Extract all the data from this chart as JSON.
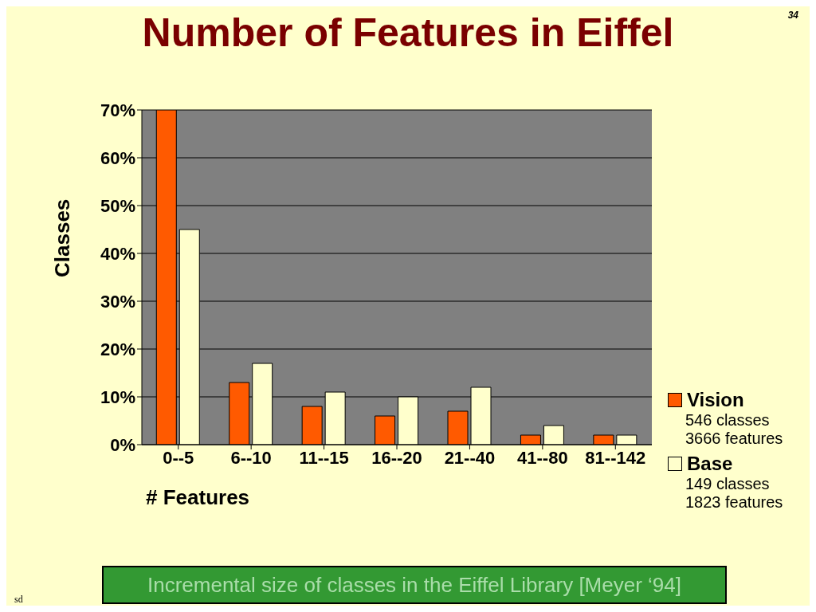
{
  "chart_data": {
    "type": "bar",
    "title": "Number of Features in Eiffel",
    "xlabel": "# Features",
    "ylabel": "Classes",
    "categories": [
      "0--5",
      "6--10",
      "11--15",
      "16--20",
      "21--40",
      "41--80",
      "81--142"
    ],
    "series": [
      {
        "name": "Vision",
        "color": "#ff5a00",
        "values": [
          70,
          13,
          8,
          6,
          7,
          2,
          2
        ]
      },
      {
        "name": "Base",
        "color": "#ffffcc",
        "values": [
          45,
          17,
          11,
          10,
          12,
          4,
          2
        ]
      }
    ],
    "ylim": [
      0,
      70
    ],
    "yticks": [
      {
        "value": 0,
        "label": "0%"
      },
      {
        "value": 10,
        "label": "10%"
      },
      {
        "value": 20,
        "label": "20%"
      },
      {
        "value": 30,
        "label": "30%"
      },
      {
        "value": 40,
        "label": "40%"
      },
      {
        "value": 50,
        "label": "50%"
      },
      {
        "value": 60,
        "label": "60%"
      },
      {
        "value": 70,
        "label": "70%"
      }
    ],
    "grid": "y",
    "legend": "right",
    "annotations": [
      "546 classes",
      "3666 features",
      "149 classes",
      "1823 features",
      "Incremental size of classes in the Eiffel Library [Meyer ‘94]",
      "34",
      "sd"
    ]
  }
}
